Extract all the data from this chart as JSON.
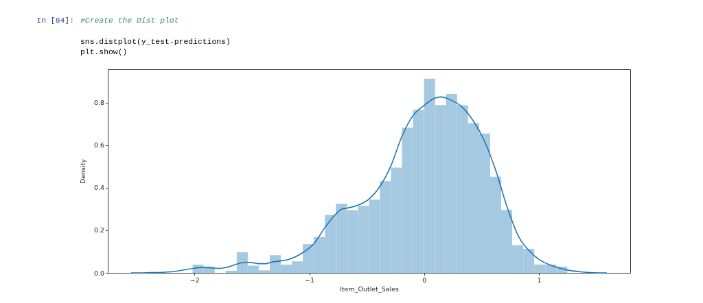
{
  "chart_data": {
    "type": "histogram",
    "xlabel": "Item_Outlet_Sales",
    "ylabel": "Density",
    "annotations": [
      "In [84]:",
      "#Create the Dist plot",
      "sns.distplot(y_test-predictions)",
      "plt.show()"
    ],
    "color": "#a5c9e1",
    "bins": [
      -2.016,
      -1.92,
      -1.824,
      -1.728,
      -1.632,
      -1.536,
      -1.44,
      -1.344,
      -1.248,
      -1.152,
      -1.056,
      -0.96,
      -0.864,
      -0.768,
      -0.672,
      -0.576,
      -0.48,
      -0.385,
      -0.289,
      -0.193,
      -0.097,
      -0.001,
      0.095,
      0.191,
      0.287,
      0.383,
      0.479,
      0.575,
      0.671,
      0.767,
      0.863,
      0.959,
      1.055,
      1.151,
      1.247
    ],
    "values": [
      0.038,
      0.03,
      0,
      0.01,
      0.097,
      0.034,
      0.012,
      0.083,
      0.039,
      0.054,
      0.135,
      0.168,
      0.272,
      0.325,
      0.295,
      0.315,
      0.344,
      0.431,
      0.495,
      0.682,
      0.766,
      0.913,
      0.789,
      0.841,
      0.788,
      0.703,
      0.655,
      0.452,
      0.296,
      0.13,
      0.113,
      0.039,
      0.039,
      0.029
    ],
    "series": [
      {
        "type": "line",
        "color": "#1f77b4",
        "x": [
          -2.548,
          -2.4,
          -2.2,
          -2.1,
          -2.0,
          -1.95,
          -1.88,
          -1.8,
          -1.72,
          -1.63,
          -1.554,
          -1.5,
          -1.44,
          -1.38,
          -1.33,
          -1.25,
          -1.152,
          -1.056,
          -0.96,
          -0.864,
          -0.768,
          -0.72,
          -0.672,
          -0.576,
          -0.48,
          -0.385,
          -0.289,
          -0.193,
          -0.097,
          0.0,
          0.095,
          0.147,
          0.226,
          0.325,
          0.425,
          0.524,
          0.624,
          0.723,
          0.823,
          0.922,
          1.0,
          1.121,
          1.24,
          1.36,
          1.479,
          1.588
        ],
        "values": [
          0.0,
          0.001,
          0.005,
          0.013,
          0.022,
          0.025,
          0.024,
          0.021,
          0.026,
          0.041,
          0.05,
          0.048,
          0.043,
          0.043,
          0.05,
          0.056,
          0.068,
          0.095,
          0.137,
          0.213,
          0.277,
          0.299,
          0.304,
          0.318,
          0.347,
          0.406,
          0.503,
          0.642,
          0.739,
          0.787,
          0.822,
          0.827,
          0.814,
          0.782,
          0.717,
          0.621,
          0.481,
          0.309,
          0.17,
          0.1,
          0.063,
          0.032,
          0.014,
          0.005,
          0.001,
          0.0
        ]
      }
    ],
    "xlim": [
      -2.755,
      1.795
    ],
    "ylim": [
      0,
      0.957
    ],
    "xticks": [
      {
        "value": -2,
        "label": "−2"
      },
      {
        "value": -1,
        "label": "−1"
      },
      0,
      1
    ],
    "yticks": [
      {
        "value": 0,
        "label": "0.0"
      },
      0.2,
      0.4,
      0.6,
      0.8
    ]
  }
}
